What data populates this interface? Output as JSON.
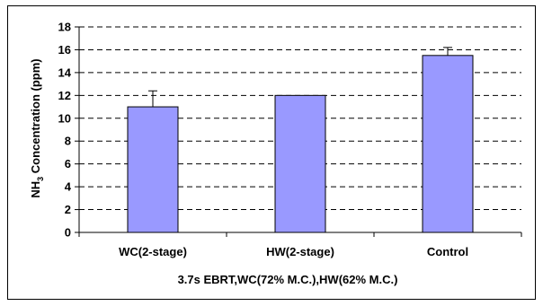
{
  "chart_data": {
    "type": "bar",
    "categories": [
      "WC(2-stage)",
      "HW(2-stage)",
      "Control"
    ],
    "values": [
      11.0,
      12.0,
      15.5
    ],
    "error_bars": [
      1.4,
      0.0,
      0.7
    ],
    "xlabel": "3.7s EBRT,WC(72% M.C.),HW(62% M.C.)",
    "ylabel_main": "NH",
    "ylabel_sub": "3",
    "ylabel_rest": " Concentration (ppm)",
    "ylim": [
      0,
      18
    ],
    "yticks": [
      0,
      2,
      4,
      6,
      8,
      10,
      12,
      14,
      16,
      18
    ],
    "grid": "horizontal dashed",
    "legend": "none",
    "bar_color": "#9999ff",
    "bar_border": "#000000"
  }
}
